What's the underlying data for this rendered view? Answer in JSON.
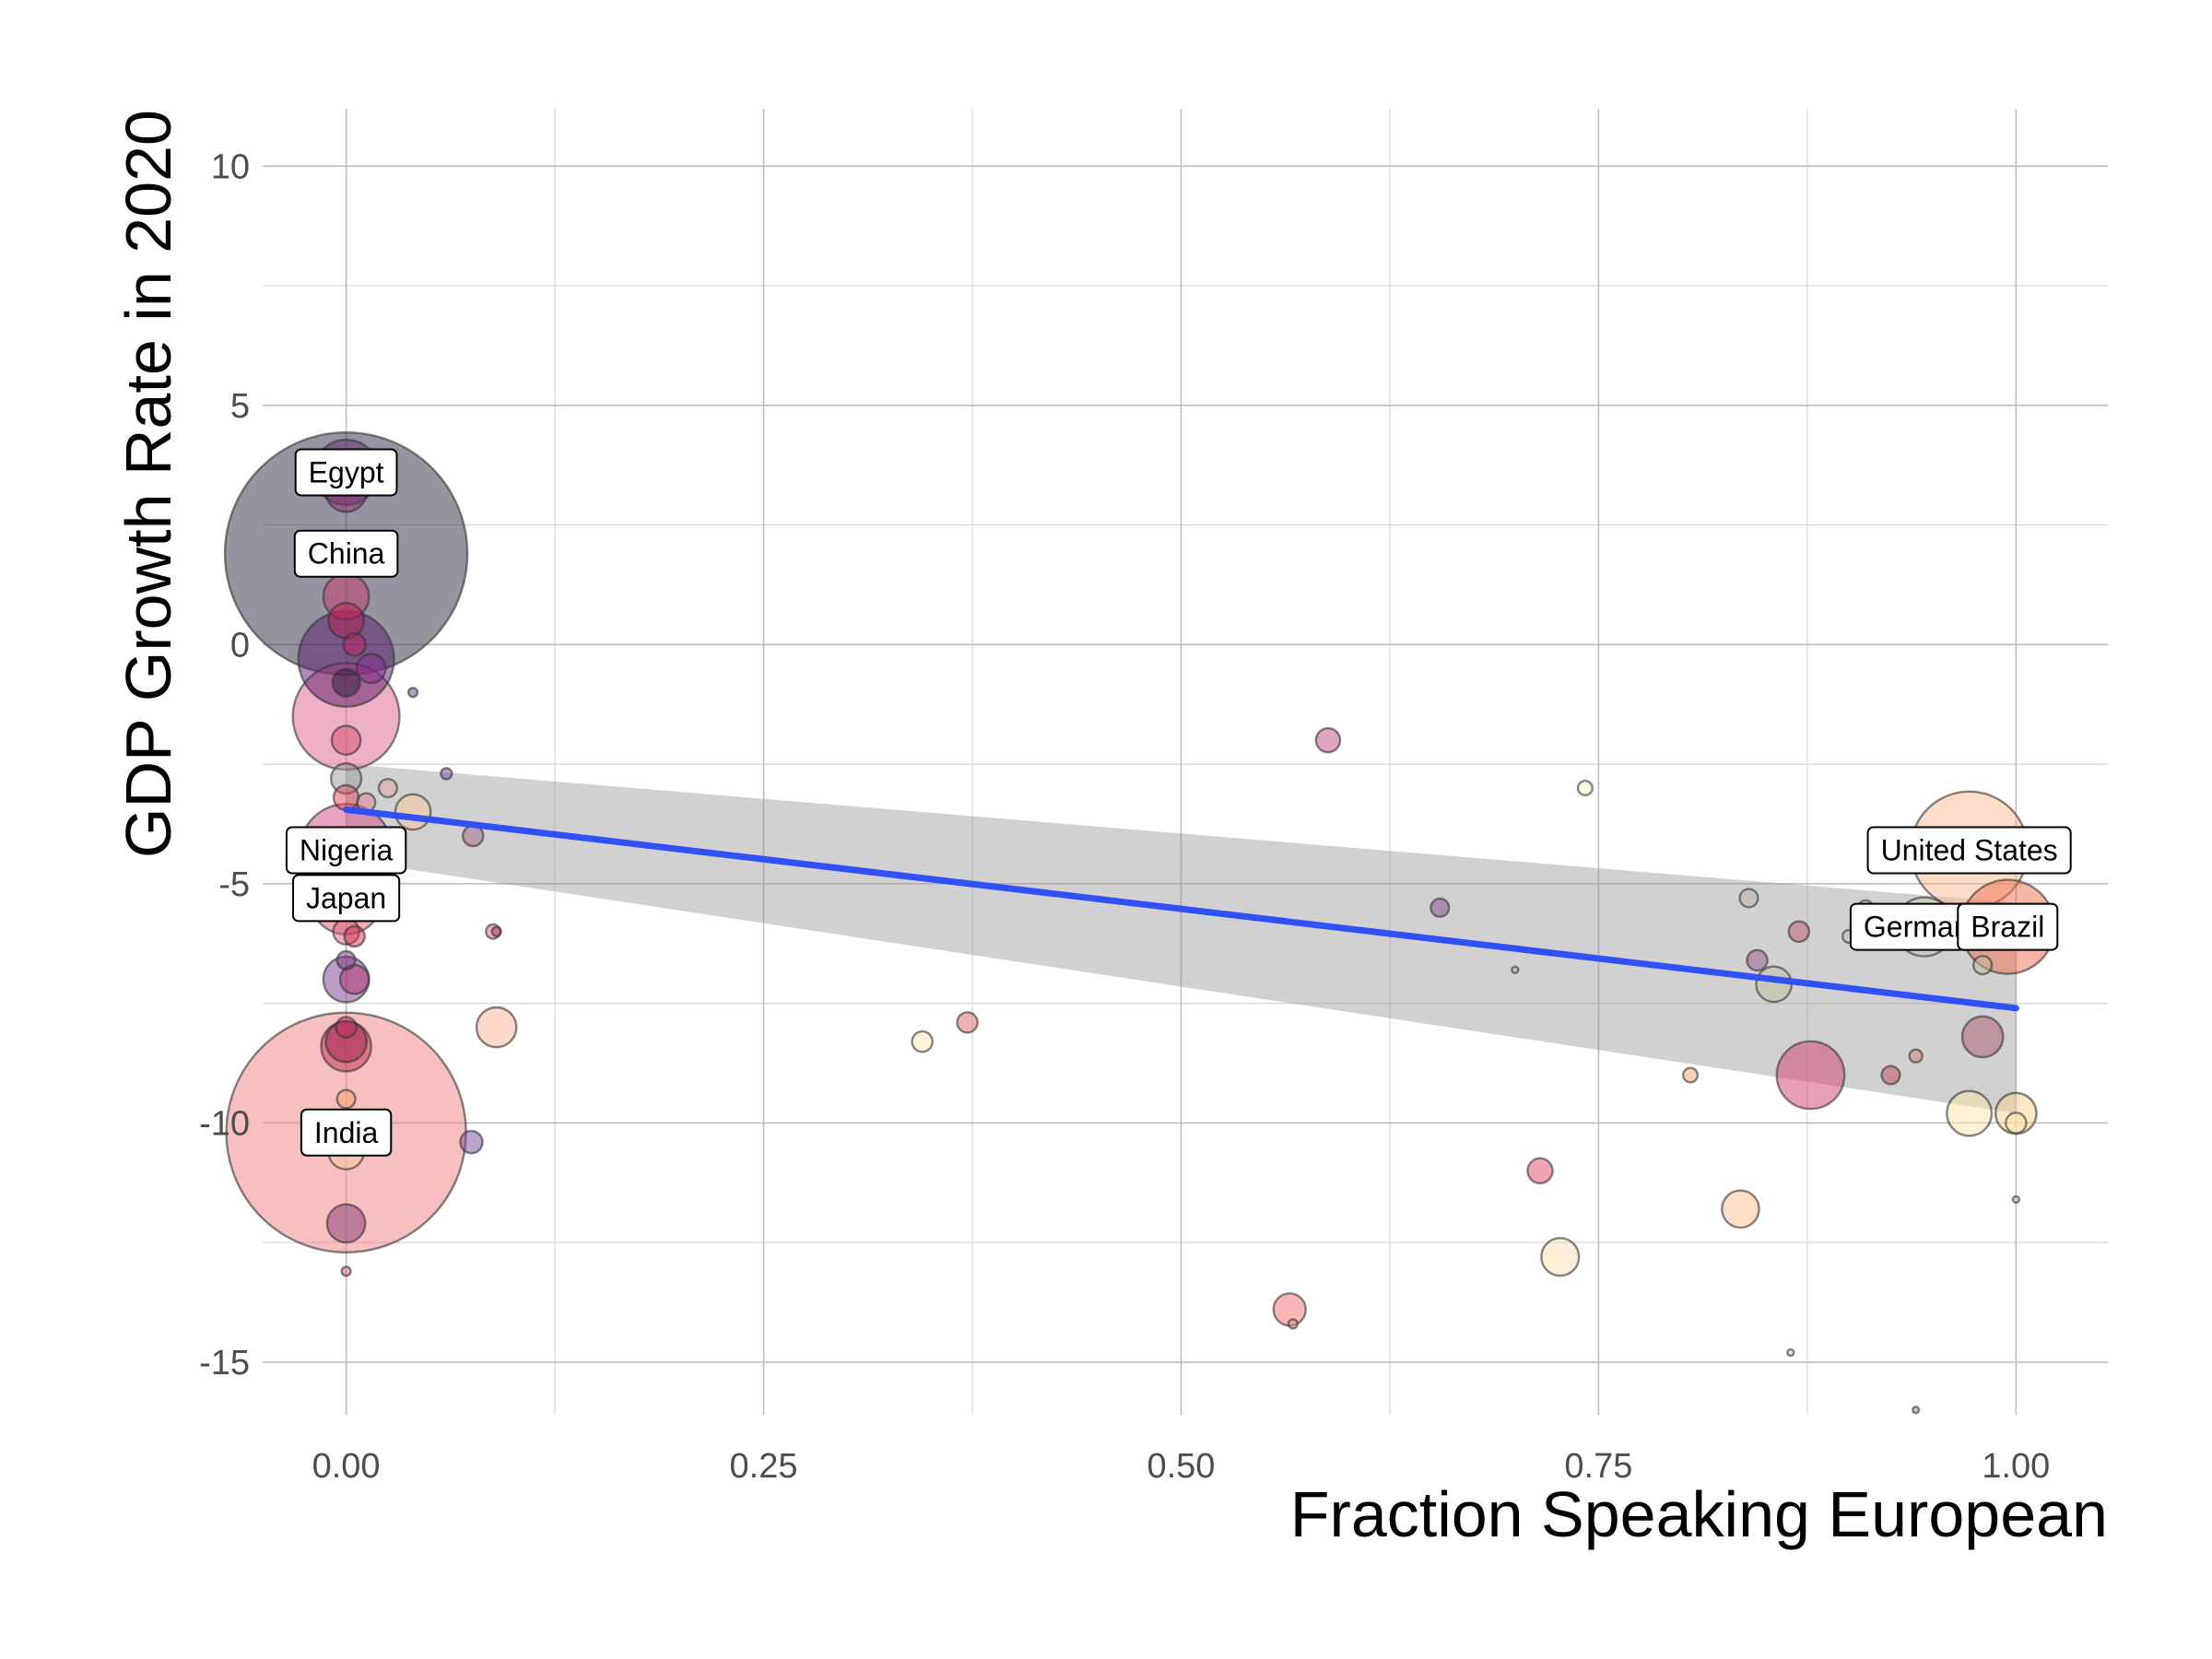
{
  "chart_data": {
    "type": "scatter",
    "title": "",
    "xlabel": "Fraction Speaking European",
    "ylabel": "GDP Growth Rate in 2020",
    "xlim": [
      -0.05,
      1.055
    ],
    "ylim": [
      -16.1,
      11.2
    ],
    "x_ticks": [
      0,
      0.25,
      0.5,
      0.75,
      1
    ],
    "x_tick_labels": [
      "0.00",
      "0.25",
      "0.50",
      "0.75",
      "1.00"
    ],
    "y_ticks": [
      -15,
      -10,
      -5,
      0,
      5,
      10
    ],
    "y_tick_labels": [
      "-15",
      "-10",
      "-5",
      "0",
      "5",
      "10"
    ],
    "grid": true,
    "legend": "none",
    "bubble_size_note": "point area proportional to population",
    "colors": {
      "grid_major": "#bdbdbd",
      "grid_minor": "#d6d6d6",
      "trend_line": "#3050f8",
      "confidence_band": "#999999",
      "point_stroke": "#333333"
    },
    "trend": {
      "x": [
        0,
        1
      ],
      "y": [
        -3.45,
        -7.6
      ],
      "ci_lower": [
        -4.5,
        -9.8
      ],
      "ci_upper": [
        -2.5,
        -5.4
      ]
    },
    "points": [
      {
        "x": 0,
        "y": 1.9,
        "size": 1412,
        "color": "#2b2b45",
        "label": "China"
      },
      {
        "x": 0,
        "y": -10.2,
        "size": 1380,
        "color": "#f08080",
        "label": "India"
      },
      {
        "x": 0,
        "y": 3.6,
        "size": 102,
        "color": "#6a2c70",
        "label": "Egypt"
      },
      {
        "x": 0,
        "y": -1.5,
        "size": 273,
        "color": "#e0608f"
      },
      {
        "x": 0,
        "y": -0.3,
        "size": 220,
        "color": "#5a1a6a"
      },
      {
        "x": 0,
        "y": -4.3,
        "size": 206,
        "color": "#d44a8a",
        "label": "Nigeria"
      },
      {
        "x": 0,
        "y": -5.3,
        "size": 126,
        "color": "#e05570",
        "label": "Japan"
      },
      {
        "x": 0,
        "y": 1.0,
        "size": 50,
        "color": "#c8386a"
      },
      {
        "x": 0,
        "y": 0.5,
        "size": 30,
        "color": "#b52050"
      },
      {
        "x": 0,
        "y": 3.2,
        "size": 40,
        "color": "#8a3070"
      },
      {
        "x": 0,
        "y": -0.8,
        "size": 18,
        "color": "#2a1a3a"
      },
      {
        "x": 0,
        "y": -2.0,
        "size": 20,
        "color": "#d85070"
      },
      {
        "x": 0,
        "y": -2.8,
        "size": 22,
        "color": "#9a9aa0"
      },
      {
        "x": 0,
        "y": -3.2,
        "size": 15,
        "color": "#e04a5a"
      },
      {
        "x": 0,
        "y": -6.0,
        "size": 16,
        "color": "#e06080"
      },
      {
        "x": 0,
        "y": -6.6,
        "size": 8,
        "color": "#7a3a80"
      },
      {
        "x": 0,
        "y": -7.0,
        "size": 50,
        "color": "#7a3a90"
      },
      {
        "x": 0,
        "y": -8.0,
        "size": 10,
        "color": "#b03060"
      },
      {
        "x": 0,
        "y": -8.3,
        "size": 40,
        "color": "#a02050"
      },
      {
        "x": 0,
        "y": -8.4,
        "size": 60,
        "color": "#c03050"
      },
      {
        "x": 0,
        "y": -9.5,
        "size": 8,
        "color": "#f4a070"
      },
      {
        "x": 0,
        "y": -10.6,
        "size": 30,
        "color": "#fbc89a"
      },
      {
        "x": 0,
        "y": -12.1,
        "size": 35,
        "color": "#8a3a80"
      },
      {
        "x": 0,
        "y": -13.1,
        "size": 2,
        "color": "#d06070"
      },
      {
        "x": 0.005,
        "y": 0.0,
        "size": 12,
        "color": "#c02060"
      },
      {
        "x": 0.005,
        "y": -6.1,
        "size": 10,
        "color": "#d03050"
      },
      {
        "x": 0.005,
        "y": -7.0,
        "size": 20,
        "color": "#b03070"
      },
      {
        "x": 0.012,
        "y": -3.3,
        "size": 8,
        "color": "#e08090"
      },
      {
        "x": 0.015,
        "y": -0.5,
        "size": 20,
        "color": "#8a2a90"
      },
      {
        "x": 0.025,
        "y": -3.0,
        "size": 8,
        "color": "#e0a0a0"
      },
      {
        "x": 0.04,
        "y": -3.5,
        "size": 30,
        "color": "#fbc89a"
      },
      {
        "x": 0.04,
        "y": -1.0,
        "size": 2,
        "color": "#6a3a90"
      },
      {
        "x": 0.06,
        "y": -2.7,
        "size": 3,
        "color": "#7a4aa0"
      },
      {
        "x": 0.075,
        "y": -10.4,
        "size": 12,
        "color": "#7a4aa0"
      },
      {
        "x": 0.076,
        "y": -4.0,
        "size": 10,
        "color": "#a06a90"
      },
      {
        "x": 0.088,
        "y": -6.0,
        "size": 5,
        "color": "#e06070"
      },
      {
        "x": 0.09,
        "y": -6.0,
        "size": 2,
        "color": "#b03060"
      },
      {
        "x": 0.09,
        "y": -8.0,
        "size": 38,
        "color": "#fbb090"
      },
      {
        "x": 0.345,
        "y": -8.3,
        "size": 10,
        "color": "#fbe8b0"
      },
      {
        "x": 0.372,
        "y": -7.9,
        "size": 10,
        "color": "#e06070"
      },
      {
        "x": 0.565,
        "y": -13.9,
        "size": 25,
        "color": "#f07070"
      },
      {
        "x": 0.567,
        "y": -14.2,
        "size": 2,
        "color": "#f08080"
      },
      {
        "x": 0.588,
        "y": -2.0,
        "size": 14,
        "color": "#c04a80"
      },
      {
        "x": 0.655,
        "y": -5.5,
        "size": 8,
        "color": "#8a4a90"
      },
      {
        "x": 0.7,
        "y": -6.8,
        "size": 1,
        "color": "#d0b090"
      },
      {
        "x": 0.715,
        "y": -11.0,
        "size": 15,
        "color": "#e04a6a"
      },
      {
        "x": 0.727,
        "y": -12.8,
        "size": 34,
        "color": "#fbe0b0"
      },
      {
        "x": 0.742,
        "y": -3.0,
        "size": 5,
        "color": "#fbf0c0"
      },
      {
        "x": 0.805,
        "y": -9.0,
        "size": 5,
        "color": "#f4a070"
      },
      {
        "x": 0.835,
        "y": -11.8,
        "size": 33,
        "color": "#fbc090"
      },
      {
        "x": 0.84,
        "y": -5.3,
        "size": 8,
        "color": "#c0b0a0"
      },
      {
        "x": 0.845,
        "y": -6.6,
        "size": 10,
        "color": "#9a5a90"
      },
      {
        "x": 0.855,
        "y": -7.1,
        "size": 30,
        "color": "#c0c0a0"
      },
      {
        "x": 0.87,
        "y": -6.0,
        "size": 10,
        "color": "#c05a70"
      },
      {
        "x": 0.865,
        "y": -14.8,
        "size": 1,
        "color": "#c0c0c0"
      },
      {
        "x": 0.877,
        "y": -9.0,
        "size": 110,
        "color": "#d04070"
      },
      {
        "x": 0.91,
        "y": -5.5,
        "size": 5,
        "color": "#d0c0a0"
      },
      {
        "x": 0.9,
        "y": -6.1,
        "size": 4,
        "color": "#c0c0b0"
      },
      {
        "x": 0.925,
        "y": -9.0,
        "size": 8,
        "color": "#c04a60"
      },
      {
        "x": 0.94,
        "y": -8.6,
        "size": 4,
        "color": "#d08070"
      },
      {
        "x": 0.94,
        "y": -16.0,
        "size": 1,
        "color": "#d07070"
      },
      {
        "x": 0.945,
        "y": -5.9,
        "size": 83,
        "color": "#c8c8b0",
        "label": "Germany"
      },
      {
        "x": 0.972,
        "y": -4.3,
        "size": 331,
        "color": "#fbbc90",
        "label": "United States"
      },
      {
        "x": 0.972,
        "y": -9.8,
        "size": 48,
        "color": "#fbe6a8"
      },
      {
        "x": 0.98,
        "y": -8.2,
        "size": 40,
        "color": "#b05a70"
      },
      {
        "x": 0.98,
        "y": -6.7,
        "size": 8,
        "color": "#c0c0a0"
      },
      {
        "x": 0.995,
        "y": -5.9,
        "size": 212,
        "color": "#f07050",
        "label": "Brazil"
      },
      {
        "x": 1.0,
        "y": -9.8,
        "size": 40,
        "color": "#fbd090"
      },
      {
        "x": 1.0,
        "y": -10.0,
        "size": 10,
        "color": "#fbe6a8"
      },
      {
        "x": 1.0,
        "y": -11.6,
        "size": 1,
        "color": "#d0c0b0"
      }
    ]
  }
}
